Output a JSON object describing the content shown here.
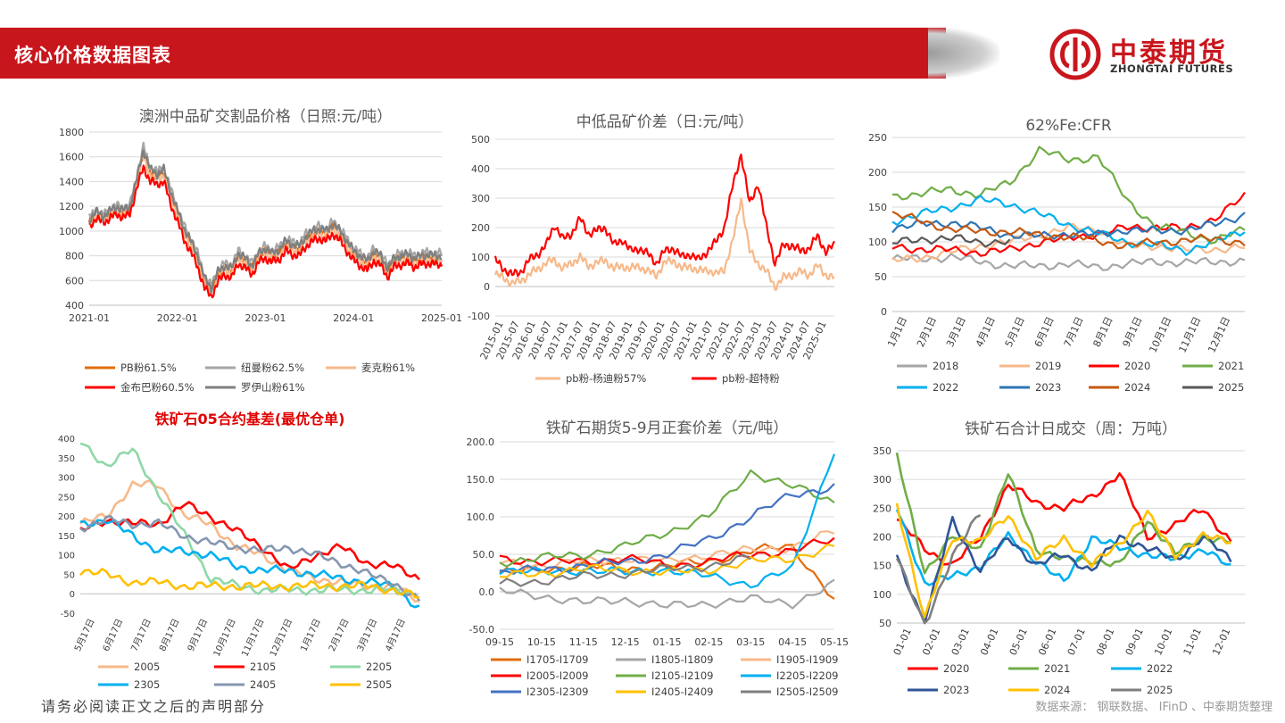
{
  "header": {
    "title": "核心价格数据图表"
  },
  "logo": {
    "name": "中泰期货",
    "subtitle": "ZHONGTAI FUTURES"
  },
  "footer": {
    "disclaimer": "请务必阅读正文之后的声明部分",
    "source": "数据来源： 钢联数据、 IFinD 、中泰期货整理"
  },
  "colors": {
    "brand": "#c8161d"
  },
  "chart_data": [
    {
      "id": "c1",
      "type": "line",
      "title": "澳洲中品矿交割品价格（日照:元/吨）",
      "ylim": [
        400,
        1800
      ],
      "yticks": [
        "400",
        "600",
        "800",
        "1000",
        "1200",
        "1400",
        "1600",
        "1800"
      ],
      "xticks": [
        "2021-01",
        "2022-01",
        "2023-01",
        "2024-01",
        "2025-01"
      ],
      "xlim": [
        0,
        52
      ],
      "series": [
        {
          "name": "PB粉61.5%",
          "color": "#e36c0a",
          "values": [
            1070,
            1140,
            1100,
            1140,
            1180,
            1150,
            1180,
            1400,
            1640,
            1480,
            1440,
            1480,
            1300,
            1150,
            1000,
            900,
            780,
            600,
            520,
            650,
            700,
            680,
            800,
            760,
            700,
            800,
            840,
            800,
            830,
            900,
            870,
            860,
            940,
            980,
            1000,
            980,
            1040,
            980,
            900,
            820,
            780,
            740,
            820,
            780,
            680,
            760,
            780,
            790,
            760,
            780,
            790,
            780,
            780
          ]
        },
        {
          "name": "纽曼粉62.5%",
          "color": "#a6a6a6",
          "values": [
            1110,
            1170,
            1130,
            1170,
            1210,
            1180,
            1210,
            1440,
            1680,
            1520,
            1480,
            1520,
            1340,
            1190,
            1040,
            940,
            820,
            640,
            560,
            690,
            740,
            720,
            840,
            800,
            740,
            840,
            880,
            840,
            870,
            940,
            910,
            900,
            980,
            1020,
            1040,
            1020,
            1080,
            1020,
            940,
            860,
            820,
            780,
            860,
            820,
            720,
            800,
            820,
            830,
            800,
            820,
            830,
            820,
            820
          ]
        },
        {
          "name": "麦克粉61%",
          "color": "#f7b98a",
          "values": [
            1060,
            1120,
            1090,
            1120,
            1160,
            1130,
            1160,
            1380,
            1600,
            1450,
            1420,
            1450,
            1280,
            1130,
            980,
            880,
            760,
            580,
            500,
            630,
            690,
            660,
            780,
            740,
            690,
            790,
            820,
            790,
            810,
            880,
            850,
            840,
            920,
            960,
            980,
            960,
            1020,
            960,
            880,
            800,
            760,
            720,
            800,
            760,
            660,
            740,
            760,
            770,
            740,
            760,
            770,
            760,
            760
          ]
        },
        {
          "name": "金布巴粉60.5%",
          "color": "#ff0000",
          "values": [
            1040,
            1100,
            1070,
            1100,
            1140,
            1110,
            1140,
            1340,
            1520,
            1400,
            1380,
            1400,
            1220,
            1080,
            930,
            830,
            710,
            540,
            470,
            590,
            650,
            620,
            740,
            700,
            650,
            750,
            780,
            750,
            770,
            840,
            810,
            800,
            880,
            920,
            940,
            920,
            980,
            920,
            840,
            760,
            720,
            680,
            760,
            720,
            630,
            710,
            730,
            740,
            710,
            730,
            740,
            730,
            730
          ]
        },
        {
          "name": "罗伊山粉61%",
          "color": "#7f7f7f",
          "values": [
            1090,
            1160,
            1120,
            1160,
            1200,
            1170,
            1200,
            1420,
            1660,
            1500,
            1460,
            1500,
            1320,
            1170,
            1020,
            920,
            800,
            620,
            540,
            670,
            720,
            700,
            820,
            780,
            720,
            820,
            860,
            820,
            850,
            920,
            890,
            880,
            960,
            1000,
            1020,
            1000,
            1060,
            1000,
            920,
            840,
            800,
            760,
            840,
            800,
            700,
            780,
            800,
            810,
            780,
            800,
            810,
            800,
            800
          ]
        }
      ]
    },
    {
      "id": "c2",
      "type": "line",
      "title": "中低品矿价差（日:元/吨）",
      "ylim": [
        -100,
        500
      ],
      "yticks": [
        "-100",
        "0",
        "100",
        "200",
        "300",
        "400",
        "500"
      ],
      "xticks": [
        "2015-01",
        "2015-07",
        "2016-01",
        "2016-07",
        "2017-01",
        "2017-07",
        "2018-01",
        "2018-07",
        "2019-01",
        "2019-07",
        "2020-01",
        "2020-07",
        "2021-01",
        "2021-07",
        "2022-01",
        "2022-07",
        "2023-01",
        "2023-07",
        "2024-01",
        "2024-07",
        "2025-01"
      ],
      "xlim": [
        0,
        40
      ],
      "series": [
        {
          "name": "pb粉-杨迪粉57%",
          "color": "#f7b98a",
          "values": [
            40,
            30,
            10,
            20,
            40,
            60,
            80,
            90,
            60,
            80,
            100,
            70,
            80,
            90,
            60,
            70,
            60,
            70,
            50,
            40,
            80,
            90,
            60,
            70,
            50,
            60,
            40,
            60,
            150,
            300,
            120,
            80,
            50,
            0,
            30,
            40,
            50,
            40,
            70,
            40,
            30
          ]
        },
        {
          "name": "pb粉-超特粉",
          "color": "#ff0000",
          "values": [
            90,
            60,
            40,
            50,
            90,
            110,
            140,
            210,
            160,
            180,
            230,
            180,
            190,
            200,
            140,
            160,
            120,
            130,
            110,
            80,
            120,
            130,
            100,
            110,
            90,
            120,
            150,
            200,
            340,
            450,
            280,
            350,
            200,
            80,
            140,
            140,
            120,
            130,
            170,
            120,
            140
          ]
        }
      ]
    },
    {
      "id": "c3",
      "type": "line",
      "title": "62%Fe:CFR",
      "ylim": [
        0,
        250
      ],
      "yticks": [
        "0",
        "50",
        "100",
        "150",
        "200",
        "250"
      ],
      "xticks": [
        "1月1日",
        "2月1日",
        "3月1日",
        "4月1日",
        "5月1日",
        "6月1日",
        "7月1日",
        "8月1日",
        "9月1日",
        "10月1日",
        "11月1日",
        "12月1日"
      ],
      "xlim": [
        0,
        12
      ],
      "series": [
        {
          "name": "2018",
          "color": "#a6a6a6",
          "values": [
            75,
            76,
            78,
            72,
            65,
            66,
            68,
            64,
            68,
            72,
            70,
            72,
            72
          ]
        },
        {
          "name": "2019",
          "color": "#f7b98a",
          "values": [
            72,
            78,
            85,
            95,
            100,
            110,
            120,
            118,
            92,
            95,
            88,
            90,
            92
          ]
        },
        {
          "name": "2020",
          "color": "#ff0000",
          "values": [
            92,
            90,
            88,
            85,
            88,
            100,
            105,
            112,
            120,
            122,
            118,
            135,
            165
          ]
        },
        {
          "name": "2021",
          "color": "#70ad47",
          "values": [
            165,
            170,
            175,
            168,
            185,
            232,
            218,
            222,
            160,
            120,
            115,
            100,
            120
          ]
        },
        {
          "name": "2022",
          "color": "#00b0f0",
          "values": [
            130,
            140,
            150,
            160,
            155,
            140,
            125,
            112,
            100,
            95,
            88,
            100,
            118
          ]
        },
        {
          "name": "2023",
          "color": "#2e75b6",
          "values": [
            120,
            125,
            128,
            120,
            110,
            108,
            112,
            110,
            118,
            115,
            118,
            125,
            140
          ]
        },
        {
          "name": "2024",
          "color": "#c55a11",
          "values": [
            140,
            130,
            118,
            115,
            115,
            110,
            108,
            102,
            94,
            100,
            102,
            105,
            98
          ]
        },
        {
          "name": "2025",
          "color": "#595959",
          "values": [
            98,
            104,
            105,
            100,
            100
          ]
        }
      ]
    },
    {
      "id": "c4",
      "type": "line",
      "title": "铁矿石05合约基差(最优仓单)",
      "ylim": [
        -50,
        400
      ],
      "yticks": [
        "-50",
        "0",
        "50",
        "100",
        "150",
        "200",
        "250",
        "300",
        "350",
        "400"
      ],
      "xticks": [
        "5月17日",
        "6月17日",
        "7月17日",
        "8月17日",
        "9月17日",
        "10月17日",
        "11月17日",
        "12月17日",
        "1月17日",
        "2月17日",
        "3月17日",
        "4月17日"
      ],
      "xlim": [
        0,
        13
      ],
      "series": [
        {
          "name": "2005",
          "color": "#f7b98a",
          "values": [
            180,
            200,
            280,
            280,
            200,
            180,
            120,
            100,
            60,
            40,
            30,
            20,
            20,
            -20
          ]
        },
        {
          "name": "2105",
          "color": "#ff0000",
          "values": [
            160,
            190,
            180,
            180,
            230,
            200,
            160,
            120,
            60,
            100,
            120,
            80,
            70,
            40
          ]
        },
        {
          "name": "2205",
          "color": "#8ed8a8",
          "values": [
            390,
            330,
            370,
            260,
            150,
            40,
            20,
            10,
            10,
            10,
            10,
            10,
            10,
            0
          ]
        },
        {
          "name": "2305",
          "color": "#00b0f0",
          "values": [
            180,
            190,
            150,
            110,
            110,
            100,
            70,
            60,
            60,
            50,
            40,
            30,
            20,
            -40
          ]
        },
        {
          "name": "2405",
          "color": "#8497b0",
          "values": [
            170,
            190,
            180,
            180,
            150,
            130,
            120,
            110,
            120,
            100,
            80,
            50,
            30,
            -20
          ]
        },
        {
          "name": "2505",
          "color": "#ffc000",
          "values": [
            60,
            50,
            30,
            30,
            20,
            20,
            20,
            20,
            20,
            20,
            20,
            20,
            10,
            -10
          ]
        }
      ]
    },
    {
      "id": "c5",
      "type": "line",
      "title": "铁矿石期货5-9月正套价差（元/吨）",
      "ylim": [
        -50,
        200
      ],
      "yticks": [
        "-50.0",
        "0.0",
        "50.0",
        "100.0",
        "150.0",
        "200.0"
      ],
      "xticks": [
        "09-15",
        "10-15",
        "11-15",
        "12-15",
        "01-15",
        "02-15",
        "03-15",
        "04-15",
        "05-15"
      ],
      "xlim": [
        0,
        8
      ],
      "series": [
        {
          "name": "I1705-I1709",
          "color": "#e36c0a",
          "values": [
            25,
            30,
            35,
            30,
            35,
            40,
            55,
            60,
            -10
          ]
        },
        {
          "name": "I1805-I1809",
          "color": "#a6a6a6",
          "values": [
            0,
            -5,
            -15,
            -10,
            -20,
            -15,
            -10,
            -15,
            10
          ]
        },
        {
          "name": "I1905-I1909",
          "color": "#f7b98a",
          "values": [
            40,
            35,
            40,
            45,
            40,
            50,
            55,
            60,
            80
          ]
        },
        {
          "name": "I2005-I2009",
          "color": "#ff0000",
          "values": [
            45,
            40,
            40,
            45,
            35,
            40,
            50,
            55,
            70
          ]
        },
        {
          "name": "I2105-I2109",
          "color": "#70ad47",
          "values": [
            40,
            45,
            50,
            60,
            80,
            100,
            160,
            140,
            120
          ]
        },
        {
          "name": "I2205-I2209",
          "color": "#00b0f0",
          "values": [
            30,
            25,
            30,
            25,
            30,
            20,
            10,
            30,
            190
          ]
        },
        {
          "name": "I2305-I2309",
          "color": "#4472c4",
          "values": [
            25,
            30,
            35,
            40,
            50,
            70,
            100,
            130,
            140
          ]
        },
        {
          "name": "I2405-I2409",
          "color": "#ffc000",
          "values": [
            20,
            25,
            30,
            30,
            25,
            30,
            40,
            45,
            60
          ]
        },
        {
          "name": "I2505-I2509",
          "color": "#7f7f7f",
          "values": [
            10,
            15,
            20,
            25,
            30,
            35,
            45
          ]
        }
      ]
    },
    {
      "id": "c6",
      "type": "line",
      "title": "铁矿石合计日成交（周：万吨）",
      "ylim": [
        50,
        350
      ],
      "yticks": [
        "50",
        "100",
        "150",
        "200",
        "250",
        "300",
        "350"
      ],
      "xticks": [
        "01-01",
        "02-01",
        "03-01",
        "04-01",
        "05-01",
        "06-01",
        "07-01",
        "08-01",
        "09-01",
        "10-01",
        "11-01",
        "12-01"
      ],
      "xlim": [
        0,
        12.5
      ],
      "series": [
        {
          "name": "2020",
          "color": "#ff0000",
          "values": [
            230,
            180,
            150,
            200,
            290,
            260,
            250,
            270,
            310,
            200,
            220,
            250,
            190
          ]
        },
        {
          "name": "2021",
          "color": "#70ad47",
          "values": [
            340,
            140,
            200,
            180,
            310,
            180,
            160,
            160,
            150,
            230,
            170,
            200,
            190
          ]
        },
        {
          "name": "2022",
          "color": "#00b0f0",
          "values": [
            250,
            120,
            130,
            150,
            200,
            160,
            120,
            200,
            180,
            170,
            160,
            180,
            145
          ]
        },
        {
          "name": "2023",
          "color": "#2f5597",
          "values": [
            165,
            50,
            230,
            140,
            200,
            150,
            170,
            140,
            200,
            180,
            160,
            200,
            160
          ]
        },
        {
          "name": "2024",
          "color": "#ffc000",
          "values": [
            260,
            55,
            200,
            190,
            240,
            160,
            200,
            150,
            190,
            240,
            170,
            200,
            195
          ]
        },
        {
          "name": "2025",
          "color": "#7f7f7f",
          "values": [
            170,
            40,
            170,
            240
          ]
        }
      ]
    }
  ]
}
